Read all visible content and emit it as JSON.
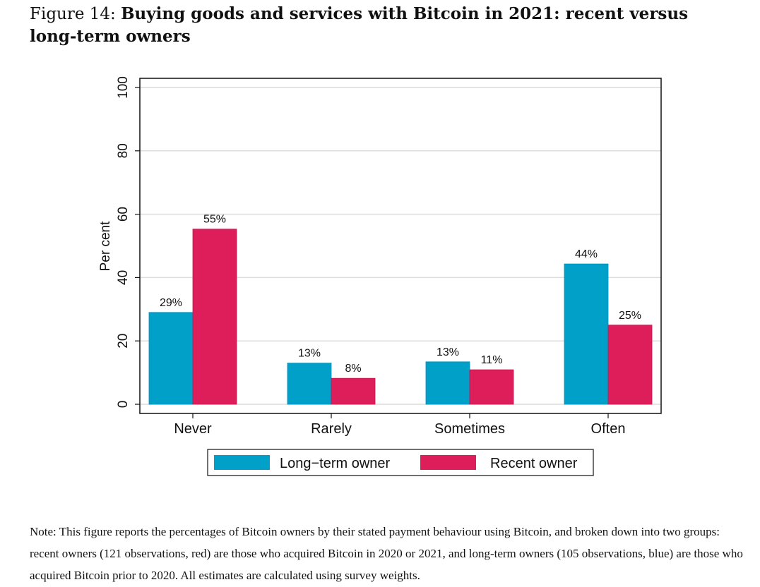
{
  "figure": {
    "label": "Figure 14:",
    "title": "Buying goods and services with Bitcoin in 2021: recent versus long-term owners",
    "note": "Note: This figure reports the percentages of Bitcoin owners by their stated payment behaviour using Bitcoin, and broken down into two groups: recent owners (121 observations, red) are those who acquired Bitcoin in 2020 or 2021, and long-term owners (105 observations, blue) are those who acquired Bitcoin prior to 2020. All estimates are calculated using survey weights."
  },
  "chart_data": {
    "type": "bar",
    "title": "Buying goods and services with Bitcoin in 2021: recent versus long-term owners",
    "xlabel": "",
    "ylabel": "Per cent",
    "ylim": [
      0,
      100
    ],
    "yticks": [
      0,
      20,
      40,
      60,
      80,
      100
    ],
    "grid": true,
    "legend_position": "bottom",
    "categories": [
      "Never",
      "Rarely",
      "Sometimes",
      "Often"
    ],
    "series": [
      {
        "name": "Long−term owner",
        "color": "#00A0C8",
        "values": [
          29,
          13,
          13.4,
          44.3
        ],
        "labels": [
          "29%",
          "13%",
          "13%",
          "44%"
        ]
      },
      {
        "name": "Recent owner",
        "color": "#DE1E5A",
        "values": [
          55.3,
          8.2,
          10.9,
          25
        ],
        "labels": [
          "55%",
          "8%",
          "11%",
          "25%"
        ]
      }
    ]
  }
}
